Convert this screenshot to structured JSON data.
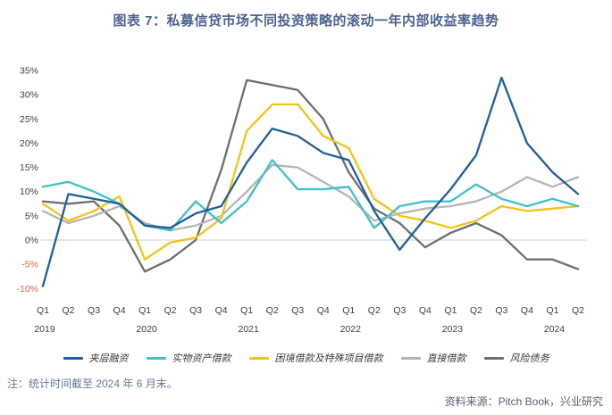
{
  "header": {
    "title": "图表 7：私募信贷市场不同投资策略的滚动一年内部收益率趋势"
  },
  "chart_data": {
    "type": "line",
    "x_labels": [
      "Q1",
      "Q2",
      "Q3",
      "Q4",
      "Q1",
      "Q2",
      "Q3",
      "Q4",
      "Q1",
      "Q2",
      "Q3",
      "Q4",
      "Q1",
      "Q2",
      "Q3",
      "Q4",
      "Q1",
      "Q2",
      "Q3",
      "Q4",
      "Q1",
      "Q2"
    ],
    "year_labels": [
      {
        "index": 0,
        "text": "2019"
      },
      {
        "index": 4,
        "text": "2020"
      },
      {
        "index": 8,
        "text": "2021"
      },
      {
        "index": 12,
        "text": "2022"
      },
      {
        "index": 16,
        "text": "2023"
      },
      {
        "index": 20,
        "text": "2024"
      }
    ],
    "y_ticks": [
      35,
      30,
      25,
      20,
      15,
      10,
      5,
      0,
      -5,
      -10
    ],
    "y_tick_suffix": "%",
    "ylim": [
      -12,
      37
    ],
    "grid": "zero-line-only",
    "legend_position": "bottom",
    "series": [
      {
        "key": "mezzanine",
        "name": "夹层融资",
        "color": "#1f5f9e",
        "values": [
          -9.5,
          9.5,
          8.5,
          7.5,
          3,
          2.5,
          5.5,
          7,
          16,
          23,
          21.5,
          18,
          16.5,
          6,
          -2,
          4.5,
          10.5,
          17.5,
          33.5,
          20,
          14,
          9.5
        ]
      },
      {
        "key": "real-assets",
        "name": "实物资产借款",
        "color": "#41bfc9",
        "values": [
          11,
          12,
          10,
          7.5,
          3,
          2,
          8,
          3.5,
          8,
          16.5,
          10.5,
          10.5,
          11,
          2.5,
          7,
          8,
          8,
          11.5,
          8.5,
          7,
          8.5,
          7
        ]
      },
      {
        "key": "distressed-special",
        "name": "困境借款及特殊项目借款",
        "color": "#f3c31a",
        "values": [
          7.5,
          4,
          6,
          9,
          -4,
          -0.5,
          0.5,
          4.5,
          22.5,
          28,
          28,
          21.5,
          19,
          8.5,
          5,
          4,
          2.5,
          4,
          7,
          6,
          6.5,
          7
        ]
      },
      {
        "key": "direct-lending",
        "name": "直接借款",
        "color": "#b5b5b5",
        "values": [
          6,
          3.5,
          5,
          7,
          3.5,
          2,
          3,
          5,
          10,
          15.5,
          15,
          12,
          9,
          4,
          5.5,
          6.5,
          7,
          8,
          10,
          13,
          11,
          13
        ]
      },
      {
        "key": "venture-debt",
        "name": "风险债务",
        "color": "#6d6e70",
        "values": [
          8,
          7.5,
          8,
          3,
          -6.5,
          -4,
          0,
          14.5,
          33,
          32,
          31,
          25,
          14,
          6.5,
          3.5,
          -1.5,
          1.5,
          3.5,
          1,
          -4,
          -4,
          -6
        ]
      }
    ]
  },
  "footer": {
    "note": "注：统计时间截至 2024 年 6 月末。",
    "source": "资料来源：Pitch Book，兴业研究"
  },
  "colors": {
    "title": "#4a6490",
    "tick": "#404040",
    "tick_negative": "#e8604a",
    "gridline": "#d9d9d9"
  }
}
